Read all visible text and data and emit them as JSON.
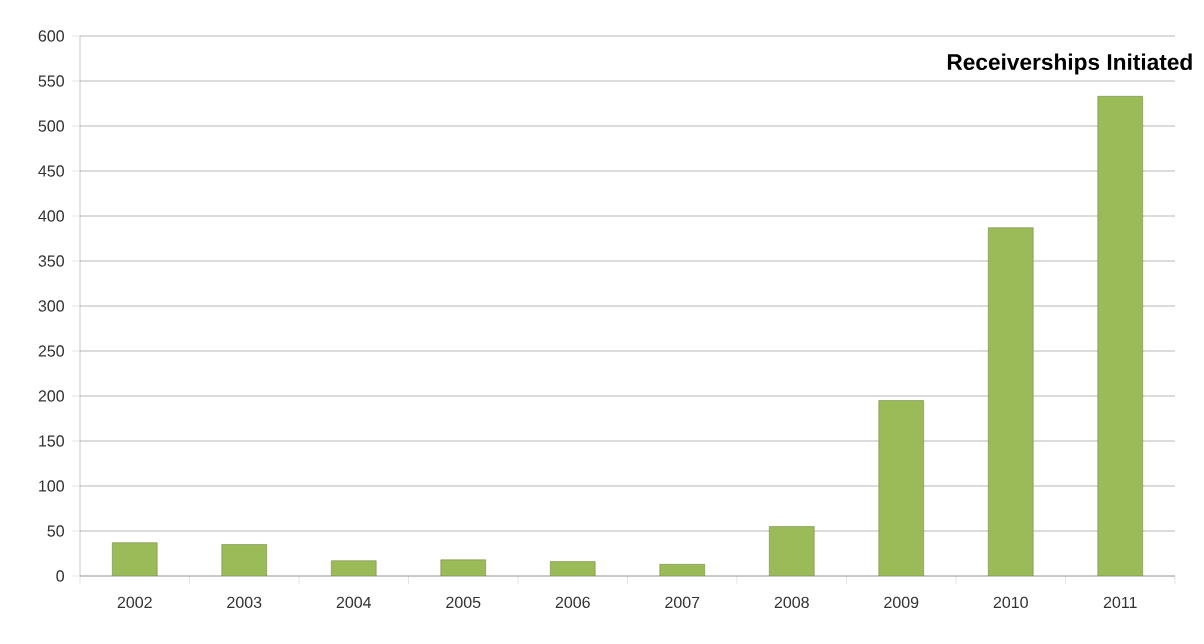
{
  "chart_data": {
    "type": "bar",
    "title": "Receiverships Initiated",
    "categories": [
      "2002",
      "2003",
      "2004",
      "2005",
      "2006",
      "2007",
      "2008",
      "2009",
      "2010",
      "2011"
    ],
    "values": [
      37,
      35,
      17,
      18,
      16,
      13,
      55,
      195,
      387,
      533
    ],
    "color": "#9bbb59",
    "ylim": [
      0,
      600
    ],
    "yticks": [
      0,
      50,
      100,
      150,
      200,
      250,
      300,
      350,
      400,
      450,
      500,
      550,
      600
    ],
    "grid": "y"
  }
}
